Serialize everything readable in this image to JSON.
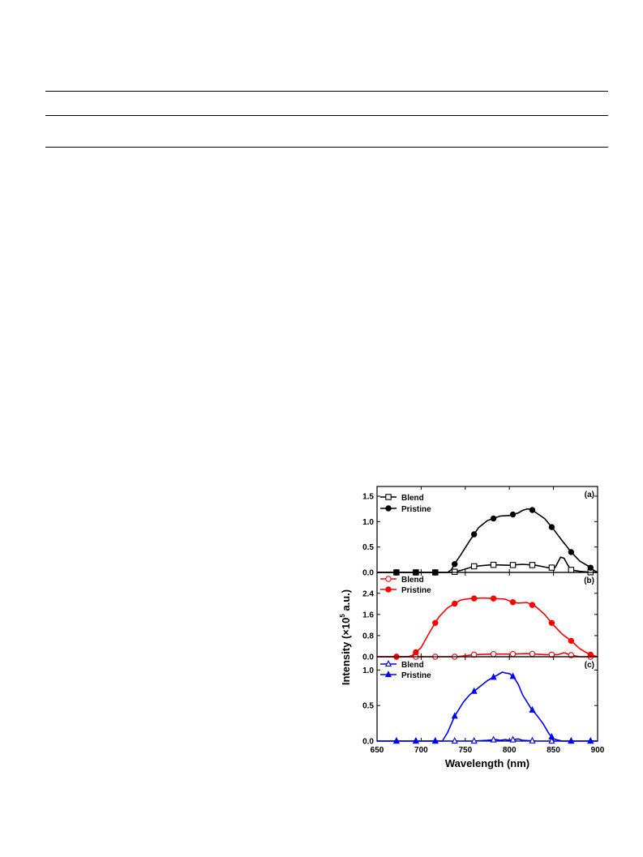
{
  "chart_data": {
    "type": "line",
    "xlabel": "Wavelength (nm)",
    "ylabel_main": "Intensity (×10",
    "ylabel_sup": "5",
    "ylabel_tail": " a.u.)",
    "xlim": [
      650,
      900
    ],
    "xticks": [
      "650",
      "700",
      "750",
      "800",
      "850",
      "900"
    ],
    "xtick_values": [
      650,
      700,
      750,
      800,
      850,
      900
    ],
    "panels": [
      {
        "label": "(a)",
        "color": "#000000",
        "ylim": [
          0,
          1.5
        ],
        "yticks": [
          "0.0",
          "0.5",
          "1.0",
          "1.5"
        ],
        "ytick_values": [
          0,
          0.5,
          1.0,
          1.5
        ],
        "legend": [
          "Blend",
          "Pristine"
        ],
        "blend_marker": "open-square",
        "pristine_marker": "filled-circle",
        "series": [
          {
            "name": "Blend",
            "x": [
              650,
              700,
              735,
              745,
              760,
              780,
              800,
              815,
              830,
              845,
              852,
              858,
              862,
              866,
              870,
              880,
              895,
              900
            ],
            "y": [
              0,
              0,
              0,
              0.04,
              0.12,
              0.15,
              0.14,
              0.16,
              0.14,
              0.09,
              0.1,
              0.3,
              0.28,
              0.15,
              0.05,
              0.02,
              0,
              0
            ]
          },
          {
            "name": "Pristine",
            "x": [
              650,
              670,
              690,
              710,
              730,
              734,
              740,
              745,
              755,
              765,
              775,
              790,
              800,
              810,
              815,
              820,
              825,
              830,
              840,
              850,
              860,
              870,
              880,
              890,
              895,
              900
            ],
            "y": [
              0,
              0,
              0,
              0,
              0,
              0.05,
              0.22,
              0.35,
              0.62,
              0.88,
              1.02,
              1.11,
              1.12,
              1.17,
              1.22,
              1.25,
              1.24,
              1.18,
              1.06,
              0.85,
              0.62,
              0.4,
              0.22,
              0.12,
              0.05,
              0
            ]
          }
        ]
      },
      {
        "label": "(b)",
        "color": "#ff0000",
        "ylim": [
          0,
          2.7
        ],
        "yticks": [
          "0.0",
          "0.8",
          "1.6",
          "2.4"
        ],
        "ytick_values": [
          0,
          0.8,
          1.6,
          2.4
        ],
        "legend": [
          "Blend",
          "Pristine"
        ],
        "blend_marker": "open-circle",
        "pristine_marker": "filled-circle",
        "series": [
          {
            "name": "Blend",
            "x": [
              650,
              700,
              740,
              760,
              780,
              800,
              820,
              840,
              855,
              862,
              870,
              880,
              900
            ],
            "y": [
              0,
              0,
              0,
              0.08,
              0.1,
              0.1,
              0.12,
              0.08,
              0.08,
              0.15,
              0.06,
              0,
              0
            ]
          },
          {
            "name": "Pristine",
            "x": [
              650,
              670,
              685,
              690,
              700,
              710,
              720,
              730,
              745,
              755,
              770,
              785,
              795,
              805,
              810,
              820,
              830,
              840,
              850,
              860,
              870,
              880,
              890,
              900
            ],
            "y": [
              0,
              0,
              0,
              0.05,
              0.35,
              0.95,
              1.5,
              1.85,
              2.15,
              2.2,
              2.22,
              2.2,
              2.18,
              2.05,
              2.03,
              2.05,
              1.9,
              1.6,
              1.2,
              0.85,
              0.6,
              0.3,
              0.1,
              0
            ]
          }
        ]
      },
      {
        "label": "(c)",
        "color": "#0000ff",
        "ylim": [
          0,
          1.05
        ],
        "yticks": [
          "0.0",
          "0.5",
          "1.0"
        ],
        "ytick_values": [
          0,
          0.5,
          1.0
        ],
        "legend": [
          "Blend",
          "Pristine"
        ],
        "blend_marker": "open-triangle",
        "pristine_marker": "filled-triangle",
        "series": [
          {
            "name": "Blend",
            "x": [
              650,
              700,
              760,
              775,
              785,
              790,
              795,
              800,
              810,
              815,
              830,
              900
            ],
            "y": [
              0,
              0,
              0,
              0.01,
              0.02,
              0.01,
              0.02,
              0.01,
              0.03,
              0.01,
              0,
              0
            ]
          },
          {
            "name": "Pristine",
            "x": [
              650,
              680,
              710,
              724,
              730,
              738,
              748,
              755,
              765,
              775,
              785,
              792,
              795,
              800,
              805,
              810,
              815,
              820,
              825,
              830,
              838,
              845,
              850,
              860,
              900
            ],
            "y": [
              0,
              0,
              0,
              0,
              0.12,
              0.35,
              0.55,
              0.65,
              0.75,
              0.85,
              0.92,
              0.97,
              0.96,
              0.95,
              0.9,
              0.8,
              0.65,
              0.55,
              0.45,
              0.38,
              0.25,
              0.1,
              0.03,
              0,
              0
            ]
          }
        ]
      }
    ]
  }
}
